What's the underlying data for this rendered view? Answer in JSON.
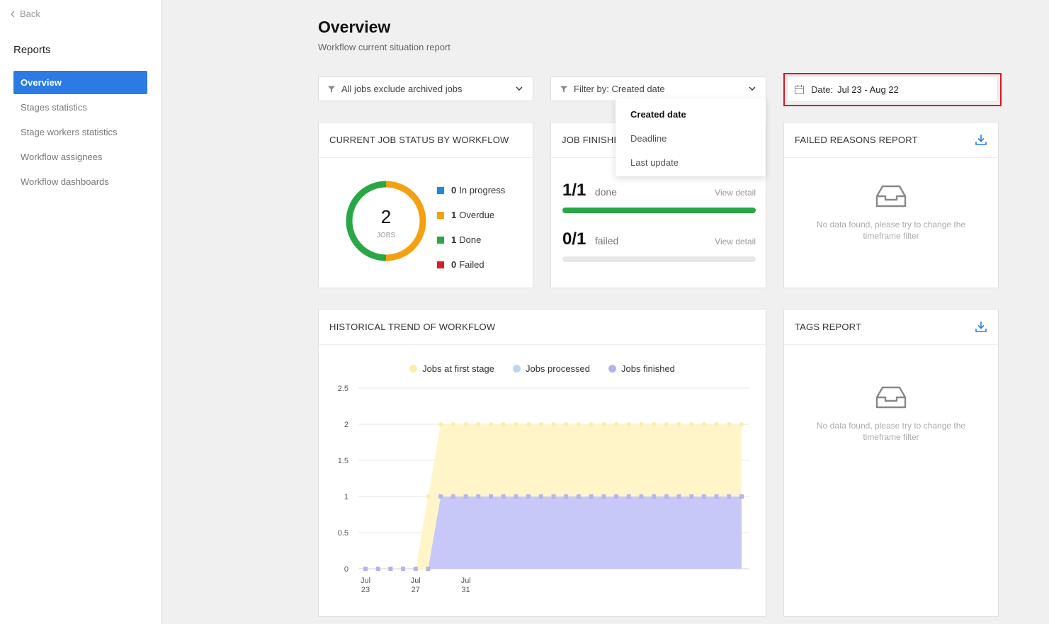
{
  "sidebar": {
    "back_label": "Back",
    "title": "Reports",
    "items": [
      {
        "label": "Overview",
        "active": true
      },
      {
        "label": "Stages statistics"
      },
      {
        "label": "Stage workers statistics"
      },
      {
        "label": "Workflow assignees"
      },
      {
        "label": "Workflow dashboards"
      }
    ]
  },
  "header": {
    "title": "Overview",
    "subtitle": "Workflow current situation report"
  },
  "filters": {
    "jobs_filter": "All jobs exclude archived jobs",
    "filter_by": "Filter by: Created date",
    "date_label": "Date:",
    "date_value": "Jul 23 - Aug 22"
  },
  "filter_dropdown": {
    "options": [
      "Created date",
      "Deadline",
      "Last update"
    ],
    "selected": "Created date"
  },
  "job_status": {
    "title": "CURRENT JOB STATUS BY WORKFLOW",
    "total": "2",
    "total_label": "JOBS",
    "items": [
      {
        "count": "0",
        "label": "In progress",
        "color": "#1e88e5"
      },
      {
        "count": "1",
        "label": "Overdue",
        "color": "#f5a00f"
      },
      {
        "count": "1",
        "label": "Done",
        "color": "#28a745"
      },
      {
        "count": "0",
        "label": "Failed",
        "color": "#dc1e28"
      }
    ]
  },
  "job_finished": {
    "title": "JOB FINISHED",
    "done": {
      "value": "1/1",
      "label": "done",
      "link": "View detail",
      "fraction": 1.0
    },
    "failed": {
      "value": "0/1",
      "label": "failed",
      "link": "View detail",
      "fraction": 0.0
    }
  },
  "failed_reasons": {
    "title": "FAILED REASONS REPORT",
    "empty_text": "No data found, please try to change the timeframe filter"
  },
  "tags_report": {
    "title": "TAGS REPORT",
    "empty_text": "No data found, please try to change the timeframe filter"
  },
  "trend": {
    "title": "HISTORICAL TREND OF WORKFLOW"
  },
  "chart_data": {
    "type": "area",
    "title": "",
    "xlabel": "",
    "ylabel": "",
    "ylim": [
      0,
      2.5
    ],
    "yticks": [
      "0",
      "0.5",
      "1",
      "1.5",
      "2",
      "2.5"
    ],
    "x_tick_labels": [
      {
        "month": "Jul",
        "day": "23"
      },
      {
        "month": "Jul",
        "day": "27"
      },
      {
        "month": "Jul",
        "day": "31"
      }
    ],
    "x": [
      "Jul 23",
      "Jul 24",
      "Jul 25",
      "Jul 26",
      "Jul 27",
      "Jul 28",
      "Jul 29",
      "Jul 30",
      "Jul 31",
      "Aug 1",
      "Aug 2",
      "Aug 3",
      "Aug 4",
      "Aug 5",
      "Aug 6",
      "Aug 7",
      "Aug 8",
      "Aug 9",
      "Aug 10",
      "Aug 11",
      "Aug 12",
      "Aug 13",
      "Aug 14",
      "Aug 15",
      "Aug 16",
      "Aug 17",
      "Aug 18",
      "Aug 19",
      "Aug 20",
      "Aug 21",
      "Aug 22"
    ],
    "legend_position": "top-center",
    "grid": true,
    "series": [
      {
        "name": "Jobs at first stage",
        "color": "#fff5c8",
        "marker": "#fbecaa",
        "values": [
          0,
          0,
          0,
          0,
          0,
          1,
          2,
          2,
          2,
          2,
          2,
          2,
          2,
          2,
          2,
          2,
          2,
          2,
          2,
          2,
          2,
          2,
          2,
          2,
          2,
          2,
          2,
          2,
          2,
          2,
          2
        ]
      },
      {
        "name": "Jobs processed",
        "color": "#bcd6f5",
        "marker": "#bcd6f5",
        "values": [
          0,
          0,
          0,
          0,
          0,
          0,
          1,
          1,
          1,
          1,
          1,
          1,
          1,
          1,
          1,
          1,
          1,
          1,
          1,
          1,
          1,
          1,
          1,
          1,
          1,
          1,
          1,
          1,
          1,
          1,
          1
        ]
      },
      {
        "name": "Jobs finished",
        "color": "#c8c8f8",
        "marker": "#b4b4ee",
        "values": [
          0,
          0,
          0,
          0,
          0,
          0,
          1,
          1,
          1,
          1,
          1,
          1,
          1,
          1,
          1,
          1,
          1,
          1,
          1,
          1,
          1,
          1,
          1,
          1,
          1,
          1,
          1,
          1,
          1,
          1,
          1
        ]
      }
    ]
  }
}
